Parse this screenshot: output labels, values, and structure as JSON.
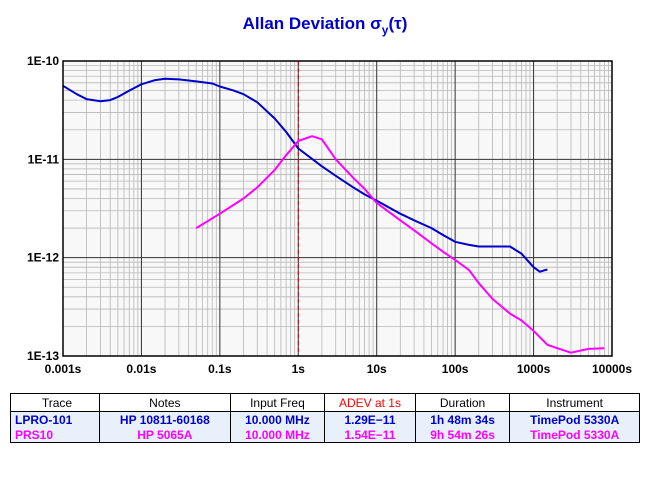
{
  "chart_data": {
    "type": "line",
    "title": "Allan Deviation",
    "title_symbol": "σ",
    "title_subscript": "y",
    "title_arg": "(τ)",
    "x_scale": "log",
    "y_scale": "log",
    "xlim": [
      0.001,
      10000
    ],
    "ylim": [
      1e-13,
      1e-10
    ],
    "x_tick_labels": [
      "0.001s",
      "0.01s",
      "0.1s",
      "1s",
      "10s",
      "100s",
      "1000s",
      "10000s"
    ],
    "y_tick_labels": [
      "1E-10",
      "1E-11",
      "1E-12",
      "1E-13"
    ],
    "grid": true,
    "reference_line": {
      "x": 1,
      "style": "dashed",
      "color": "#cc0000"
    },
    "series": [
      {
        "name": "LPRO-101",
        "color": "#0000cc",
        "points": [
          [
            0.001,
            5.6e-11
          ],
          [
            0.0015,
            4.6e-11
          ],
          [
            0.002,
            4.1e-11
          ],
          [
            0.003,
            3.9e-11
          ],
          [
            0.004,
            4e-11
          ],
          [
            0.005,
            4.3e-11
          ],
          [
            0.007,
            5e-11
          ],
          [
            0.01,
            5.8e-11
          ],
          [
            0.015,
            6.4e-11
          ],
          [
            0.02,
            6.6e-11
          ],
          [
            0.03,
            6.5e-11
          ],
          [
            0.05,
            6.2e-11
          ],
          [
            0.08,
            5.9e-11
          ],
          [
            0.1,
            5.5e-11
          ],
          [
            0.15,
            5e-11
          ],
          [
            0.2,
            4.6e-11
          ],
          [
            0.3,
            3.8e-11
          ],
          [
            0.5,
            2.6e-11
          ],
          [
            0.7,
            1.9e-11
          ],
          [
            1,
            1.29e-11
          ],
          [
            2,
            8.5e-12
          ],
          [
            3,
            6.8e-12
          ],
          [
            5,
            5.2e-12
          ],
          [
            7,
            4.4e-12
          ],
          [
            10,
            3.8e-12
          ],
          [
            20,
            2.8e-12
          ],
          [
            30,
            2.4e-12
          ],
          [
            50,
            2e-12
          ],
          [
            70,
            1.7e-12
          ],
          [
            100,
            1.45e-12
          ],
          [
            150,
            1.35e-12
          ],
          [
            200,
            1.3e-12
          ],
          [
            300,
            1.3e-12
          ],
          [
            500,
            1.3e-12
          ],
          [
            700,
            1.1e-12
          ],
          [
            1000,
            8e-13
          ],
          [
            1200,
            7.2e-13
          ],
          [
            1500,
            7.6e-13
          ]
        ]
      },
      {
        "name": "PRS10",
        "color": "#ff00ff",
        "points": [
          [
            0.05,
            2e-12
          ],
          [
            0.1,
            2.8e-12
          ],
          [
            0.2,
            4e-12
          ],
          [
            0.3,
            5.2e-12
          ],
          [
            0.5,
            7.8e-12
          ],
          [
            0.7,
            1.1e-11
          ],
          [
            1,
            1.54e-11
          ],
          [
            1.5,
            1.72e-11
          ],
          [
            2,
            1.6e-11
          ],
          [
            3,
            1e-11
          ],
          [
            5,
            6.5e-12
          ],
          [
            7,
            5e-12
          ],
          [
            10,
            3.6e-12
          ],
          [
            20,
            2.4e-12
          ],
          [
            30,
            1.9e-12
          ],
          [
            50,
            1.4e-12
          ],
          [
            70,
            1.15e-12
          ],
          [
            100,
            9.5e-13
          ],
          [
            150,
            7.5e-13
          ],
          [
            200,
            5.5e-13
          ],
          [
            300,
            3.8e-13
          ],
          [
            500,
            2.7e-13
          ],
          [
            700,
            2.3e-13
          ],
          [
            1000,
            1.8e-13
          ],
          [
            1500,
            1.3e-13
          ],
          [
            2000,
            1.2e-13
          ],
          [
            3000,
            1.08e-13
          ],
          [
            5000,
            1.18e-13
          ],
          [
            8000,
            1.2e-13
          ]
        ]
      }
    ]
  },
  "table": {
    "headers": [
      "Trace",
      "Notes",
      "Input Freq",
      "ADEV at 1s",
      "Duration",
      "Instrument"
    ],
    "header_colors": [
      "#000000",
      "#000000",
      "#000000",
      "#ff0000",
      "#000000",
      "#000000"
    ],
    "rows": [
      {
        "color": "#0000cc",
        "cells": [
          "LPRO-101",
          "HP 10811-60168",
          "10.000 MHz",
          "1.29E−11",
          "1h 48m 34s",
          "TimePod 5330A"
        ]
      },
      {
        "color": "#ff00ff",
        "cells": [
          "PRS10",
          "HP 5065A",
          "10.000 MHz",
          "1.54E−11",
          "9h 54m 26s",
          "TimePod 5330A"
        ]
      }
    ]
  }
}
